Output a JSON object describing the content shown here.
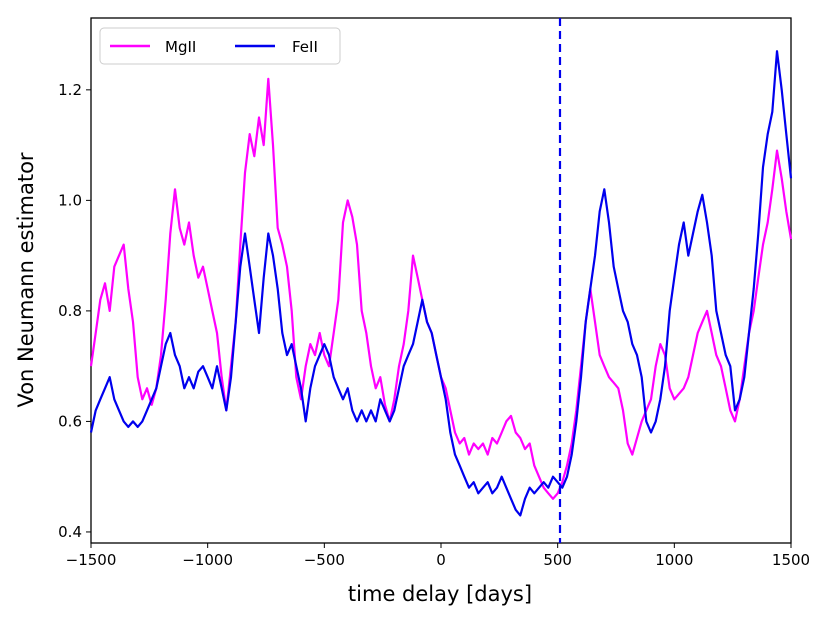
{
  "chart_data": {
    "type": "line",
    "title": "",
    "xlabel": "time delay [days]",
    "ylabel": "Von Neumann estimator",
    "xlim": [
      -1500,
      1500
    ],
    "ylim": [
      0.38,
      1.33
    ],
    "xticks": [
      -1500,
      -1000,
      -500,
      0,
      500,
      1000,
      1500
    ],
    "xtick_labels": [
      "−1500",
      "−1000",
      "−500",
      "0",
      "500",
      "1000",
      "1500"
    ],
    "yticks": [
      0.4,
      0.6,
      0.8,
      1.0,
      1.2
    ],
    "ytick_labels": [
      "0.4",
      "0.6",
      "0.8",
      "1.0",
      "1.2"
    ],
    "grid": false,
    "legend_placement": "upper-left",
    "vline": {
      "x": 510,
      "color": "#0000ee",
      "style": "dashed"
    },
    "series": [
      {
        "name": "MgII",
        "color": "#ff00ff",
        "points": [
          [
            -1500,
            0.7
          ],
          [
            -1480,
            0.76
          ],
          [
            -1460,
            0.82
          ],
          [
            -1440,
            0.85
          ],
          [
            -1420,
            0.8
          ],
          [
            -1400,
            0.88
          ],
          [
            -1380,
            0.9
          ],
          [
            -1360,
            0.92
          ],
          [
            -1340,
            0.84
          ],
          [
            -1320,
            0.78
          ],
          [
            -1300,
            0.68
          ],
          [
            -1280,
            0.64
          ],
          [
            -1260,
            0.66
          ],
          [
            -1240,
            0.63
          ],
          [
            -1220,
            0.66
          ],
          [
            -1200,
            0.72
          ],
          [
            -1180,
            0.82
          ],
          [
            -1160,
            0.94
          ],
          [
            -1140,
            1.02
          ],
          [
            -1120,
            0.95
          ],
          [
            -1100,
            0.92
          ],
          [
            -1080,
            0.96
          ],
          [
            -1060,
            0.9
          ],
          [
            -1040,
            0.86
          ],
          [
            -1020,
            0.88
          ],
          [
            -1000,
            0.84
          ],
          [
            -980,
            0.8
          ],
          [
            -960,
            0.76
          ],
          [
            -940,
            0.68
          ],
          [
            -920,
            0.62
          ],
          [
            -900,
            0.7
          ],
          [
            -880,
            0.78
          ],
          [
            -860,
            0.92
          ],
          [
            -840,
            1.05
          ],
          [
            -820,
            1.12
          ],
          [
            -800,
            1.08
          ],
          [
            -780,
            1.15
          ],
          [
            -760,
            1.1
          ],
          [
            -740,
            1.22
          ],
          [
            -720,
            1.1
          ],
          [
            -700,
            0.95
          ],
          [
            -680,
            0.92
          ],
          [
            -660,
            0.88
          ],
          [
            -640,
            0.8
          ],
          [
            -620,
            0.68
          ],
          [
            -600,
            0.64
          ],
          [
            -580,
            0.7
          ],
          [
            -560,
            0.74
          ],
          [
            -540,
            0.72
          ],
          [
            -520,
            0.76
          ],
          [
            -500,
            0.72
          ],
          [
            -480,
            0.7
          ],
          [
            -460,
            0.76
          ],
          [
            -440,
            0.82
          ],
          [
            -420,
            0.96
          ],
          [
            -400,
            1.0
          ],
          [
            -380,
            0.97
          ],
          [
            -360,
            0.92
          ],
          [
            -340,
            0.8
          ],
          [
            -320,
            0.76
          ],
          [
            -300,
            0.7
          ],
          [
            -280,
            0.66
          ],
          [
            -260,
            0.68
          ],
          [
            -240,
            0.63
          ],
          [
            -220,
            0.6
          ],
          [
            -200,
            0.64
          ],
          [
            -180,
            0.7
          ],
          [
            -160,
            0.74
          ],
          [
            -140,
            0.8
          ],
          [
            -120,
            0.9
          ],
          [
            -100,
            0.86
          ],
          [
            -80,
            0.82
          ],
          [
            -60,
            0.78
          ],
          [
            -40,
            0.76
          ],
          [
            -20,
            0.72
          ],
          [
            0,
            0.68
          ],
          [
            20,
            0.66
          ],
          [
            40,
            0.62
          ],
          [
            60,
            0.58
          ],
          [
            80,
            0.56
          ],
          [
            100,
            0.57
          ],
          [
            120,
            0.54
          ],
          [
            140,
            0.56
          ],
          [
            160,
            0.55
          ],
          [
            180,
            0.56
          ],
          [
            200,
            0.54
          ],
          [
            220,
            0.57
          ],
          [
            240,
            0.56
          ],
          [
            260,
            0.58
          ],
          [
            280,
            0.6
          ],
          [
            300,
            0.61
          ],
          [
            320,
            0.58
          ],
          [
            340,
            0.57
          ],
          [
            360,
            0.55
          ],
          [
            380,
            0.56
          ],
          [
            400,
            0.52
          ],
          [
            420,
            0.5
          ],
          [
            440,
            0.48
          ],
          [
            460,
            0.47
          ],
          [
            480,
            0.46
          ],
          [
            500,
            0.47
          ],
          [
            520,
            0.49
          ],
          [
            540,
            0.52
          ],
          [
            560,
            0.56
          ],
          [
            580,
            0.62
          ],
          [
            600,
            0.7
          ],
          [
            620,
            0.78
          ],
          [
            640,
            0.84
          ],
          [
            660,
            0.78
          ],
          [
            680,
            0.72
          ],
          [
            700,
            0.7
          ],
          [
            720,
            0.68
          ],
          [
            740,
            0.67
          ],
          [
            760,
            0.66
          ],
          [
            780,
            0.62
          ],
          [
            800,
            0.56
          ],
          [
            820,
            0.54
          ],
          [
            840,
            0.57
          ],
          [
            860,
            0.6
          ],
          [
            880,
            0.62
          ],
          [
            900,
            0.64
          ],
          [
            920,
            0.7
          ],
          [
            940,
            0.74
          ],
          [
            960,
            0.72
          ],
          [
            980,
            0.66
          ],
          [
            1000,
            0.64
          ],
          [
            1020,
            0.65
          ],
          [
            1040,
            0.66
          ],
          [
            1060,
            0.68
          ],
          [
            1080,
            0.72
          ],
          [
            1100,
            0.76
          ],
          [
            1120,
            0.78
          ],
          [
            1140,
            0.8
          ],
          [
            1160,
            0.76
          ],
          [
            1180,
            0.72
          ],
          [
            1200,
            0.7
          ],
          [
            1220,
            0.66
          ],
          [
            1240,
            0.62
          ],
          [
            1260,
            0.6
          ],
          [
            1280,
            0.64
          ],
          [
            1300,
            0.7
          ],
          [
            1320,
            0.76
          ],
          [
            1340,
            0.8
          ],
          [
            1360,
            0.86
          ],
          [
            1380,
            0.92
          ],
          [
            1400,
            0.96
          ],
          [
            1420,
            1.02
          ],
          [
            1440,
            1.09
          ],
          [
            1460,
            1.04
          ],
          [
            1480,
            0.98
          ],
          [
            1500,
            0.93
          ]
        ]
      },
      {
        "name": "FeII",
        "color": "#0000ee",
        "points": [
          [
            -1500,
            0.58
          ],
          [
            -1480,
            0.62
          ],
          [
            -1460,
            0.64
          ],
          [
            -1440,
            0.66
          ],
          [
            -1420,
            0.68
          ],
          [
            -1400,
            0.64
          ],
          [
            -1380,
            0.62
          ],
          [
            -1360,
            0.6
          ],
          [
            -1340,
            0.59
          ],
          [
            -1320,
            0.6
          ],
          [
            -1300,
            0.59
          ],
          [
            -1280,
            0.6
          ],
          [
            -1260,
            0.62
          ],
          [
            -1240,
            0.64
          ],
          [
            -1220,
            0.66
          ],
          [
            -1200,
            0.7
          ],
          [
            -1180,
            0.74
          ],
          [
            -1160,
            0.76
          ],
          [
            -1140,
            0.72
          ],
          [
            -1120,
            0.7
          ],
          [
            -1100,
            0.66
          ],
          [
            -1080,
            0.68
          ],
          [
            -1060,
            0.66
          ],
          [
            -1040,
            0.69
          ],
          [
            -1020,
            0.7
          ],
          [
            -1000,
            0.68
          ],
          [
            -980,
            0.66
          ],
          [
            -960,
            0.7
          ],
          [
            -940,
            0.66
          ],
          [
            -920,
            0.62
          ],
          [
            -900,
            0.68
          ],
          [
            -880,
            0.78
          ],
          [
            -860,
            0.88
          ],
          [
            -840,
            0.94
          ],
          [
            -820,
            0.88
          ],
          [
            -800,
            0.82
          ],
          [
            -780,
            0.76
          ],
          [
            -760,
            0.86
          ],
          [
            -740,
            0.94
          ],
          [
            -720,
            0.9
          ],
          [
            -700,
            0.84
          ],
          [
            -680,
            0.76
          ],
          [
            -660,
            0.72
          ],
          [
            -640,
            0.74
          ],
          [
            -620,
            0.7
          ],
          [
            -600,
            0.66
          ],
          [
            -580,
            0.6
          ],
          [
            -560,
            0.66
          ],
          [
            -540,
            0.7
          ],
          [
            -520,
            0.72
          ],
          [
            -500,
            0.74
          ],
          [
            -480,
            0.72
          ],
          [
            -460,
            0.68
          ],
          [
            -440,
            0.66
          ],
          [
            -420,
            0.64
          ],
          [
            -400,
            0.66
          ],
          [
            -380,
            0.62
          ],
          [
            -360,
            0.6
          ],
          [
            -340,
            0.62
          ],
          [
            -320,
            0.6
          ],
          [
            -300,
            0.62
          ],
          [
            -280,
            0.6
          ],
          [
            -260,
            0.64
          ],
          [
            -240,
            0.62
          ],
          [
            -220,
            0.6
          ],
          [
            -200,
            0.62
          ],
          [
            -180,
            0.66
          ],
          [
            -160,
            0.7
          ],
          [
            -140,
            0.72
          ],
          [
            -120,
            0.74
          ],
          [
            -100,
            0.78
          ],
          [
            -80,
            0.82
          ],
          [
            -60,
            0.78
          ],
          [
            -40,
            0.76
          ],
          [
            -20,
            0.72
          ],
          [
            0,
            0.68
          ],
          [
            20,
            0.64
          ],
          [
            40,
            0.58
          ],
          [
            60,
            0.54
          ],
          [
            80,
            0.52
          ],
          [
            100,
            0.5
          ],
          [
            120,
            0.48
          ],
          [
            140,
            0.49
          ],
          [
            160,
            0.47
          ],
          [
            180,
            0.48
          ],
          [
            200,
            0.49
          ],
          [
            220,
            0.47
          ],
          [
            240,
            0.48
          ],
          [
            260,
            0.5
          ],
          [
            280,
            0.48
          ],
          [
            300,
            0.46
          ],
          [
            320,
            0.44
          ],
          [
            340,
            0.43
          ],
          [
            360,
            0.46
          ],
          [
            380,
            0.48
          ],
          [
            400,
            0.47
          ],
          [
            420,
            0.48
          ],
          [
            440,
            0.49
          ],
          [
            460,
            0.48
          ],
          [
            480,
            0.5
          ],
          [
            500,
            0.49
          ],
          [
            520,
            0.48
          ],
          [
            540,
            0.5
          ],
          [
            560,
            0.54
          ],
          [
            580,
            0.6
          ],
          [
            600,
            0.68
          ],
          [
            620,
            0.78
          ],
          [
            640,
            0.84
          ],
          [
            660,
            0.9
          ],
          [
            680,
            0.98
          ],
          [
            700,
            1.02
          ],
          [
            720,
            0.96
          ],
          [
            740,
            0.88
          ],
          [
            760,
            0.84
          ],
          [
            780,
            0.8
          ],
          [
            800,
            0.78
          ],
          [
            820,
            0.74
          ],
          [
            840,
            0.72
          ],
          [
            860,
            0.68
          ],
          [
            880,
            0.6
          ],
          [
            900,
            0.58
          ],
          [
            920,
            0.6
          ],
          [
            940,
            0.64
          ],
          [
            960,
            0.7
          ],
          [
            980,
            0.8
          ],
          [
            1000,
            0.86
          ],
          [
            1020,
            0.92
          ],
          [
            1040,
            0.96
          ],
          [
            1060,
            0.9
          ],
          [
            1080,
            0.94
          ],
          [
            1100,
            0.98
          ],
          [
            1120,
            1.01
          ],
          [
            1140,
            0.96
          ],
          [
            1160,
            0.9
          ],
          [
            1180,
            0.8
          ],
          [
            1200,
            0.76
          ],
          [
            1220,
            0.72
          ],
          [
            1240,
            0.7
          ],
          [
            1260,
            0.62
          ],
          [
            1280,
            0.64
          ],
          [
            1300,
            0.68
          ],
          [
            1320,
            0.76
          ],
          [
            1340,
            0.84
          ],
          [
            1360,
            0.94
          ],
          [
            1380,
            1.06
          ],
          [
            1400,
            1.12
          ],
          [
            1420,
            1.16
          ],
          [
            1440,
            1.27
          ],
          [
            1460,
            1.2
          ],
          [
            1480,
            1.12
          ],
          [
            1500,
            1.04
          ]
        ]
      }
    ]
  }
}
